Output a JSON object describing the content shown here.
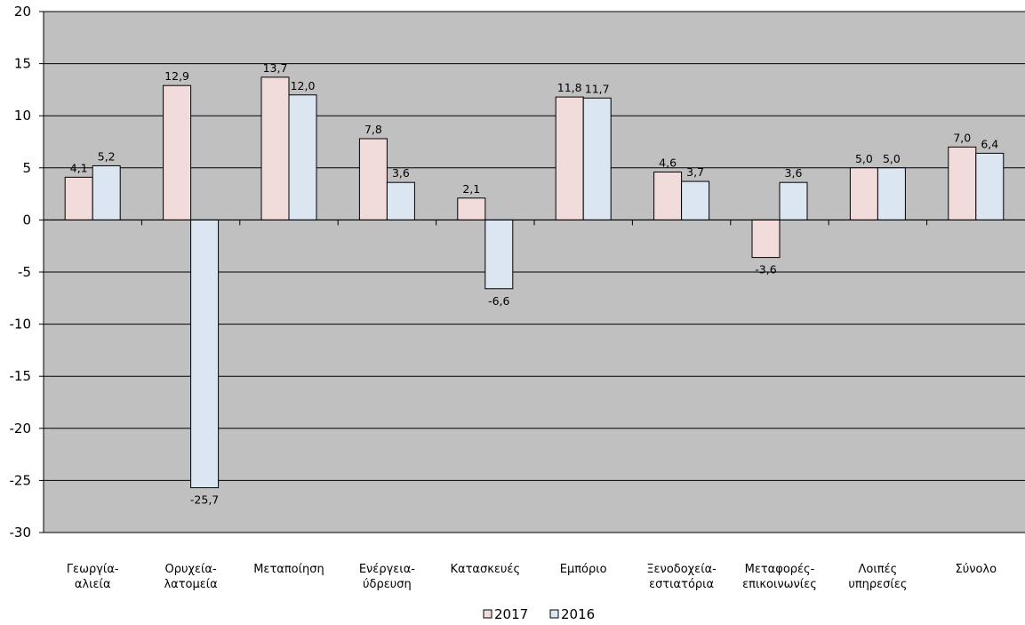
{
  "chart_data": {
    "type": "bar",
    "categories": [
      [
        "Γεωργία-",
        "αλιεία"
      ],
      [
        "Ορυχεία-",
        "λατομεία"
      ],
      [
        "Μεταποίηση"
      ],
      [
        "Ενέργεια-",
        "ύδρευση"
      ],
      [
        "Κατασκευές"
      ],
      [
        "Εμπόριο"
      ],
      [
        "Ξενοδοχεία-",
        "εστιατόρια"
      ],
      [
        "Μεταφορές-",
        "επικοινωνίες"
      ],
      [
        "Λοιπές",
        "υπηρεσίες"
      ],
      [
        "Σύνολο"
      ]
    ],
    "series": [
      {
        "name": "2017",
        "color": "#f2dcdb",
        "values": [
          4.1,
          12.9,
          13.7,
          7.8,
          2.1,
          11.8,
          4.6,
          -3.6,
          5.0,
          7.0
        ],
        "labels": [
          "4,1",
          "12,9",
          "13,7",
          "7,8",
          "2,1",
          "11,8",
          "4,6",
          "-3,6",
          "5,0",
          "7,0"
        ]
      },
      {
        "name": "2016",
        "color": "#dce6f2",
        "values": [
          5.2,
          -25.7,
          12.0,
          3.6,
          -6.6,
          11.7,
          3.7,
          3.6,
          5.0,
          6.4
        ],
        "labels": [
          "5,2",
          "-25,7",
          "12,0",
          "3,6",
          "-6,6",
          "11,7",
          "3,7",
          "3,6",
          "5,0",
          "6,4"
        ]
      }
    ],
    "ylim": [
      -30,
      20
    ],
    "yticks": [
      20,
      15,
      10,
      5,
      0,
      -5,
      -10,
      -15,
      -20,
      -25,
      -30
    ],
    "plot_background": "#c0c0c0",
    "grid": true,
    "legend_position": "bottom-center",
    "title": "",
    "xlabel": "",
    "ylabel": ""
  }
}
